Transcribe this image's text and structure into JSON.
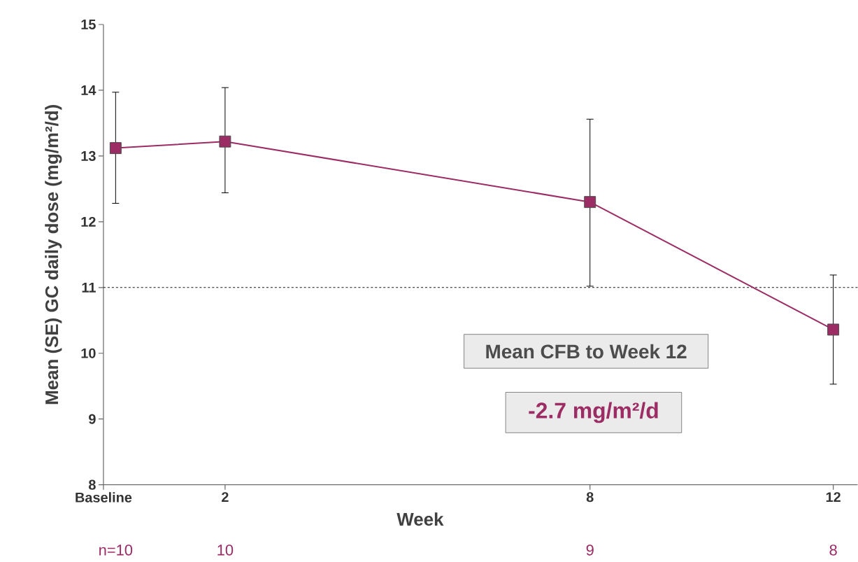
{
  "chart_data": {
    "type": "line",
    "ylabel": "Mean (SE)  GC daily dose (mg/m²/d)",
    "xlabel": "Week",
    "xlim": [
      0,
      12.4
    ],
    "xticks": [
      {
        "value": 0,
        "label": "Baseline"
      },
      2,
      8,
      12
    ],
    "ylim": [
      8,
      15
    ],
    "yticks": [
      8,
      9,
      10,
      11,
      12,
      13,
      14,
      15
    ],
    "series": [
      {
        "color": "#9c2c64",
        "x": [
          0.2,
          2,
          8,
          12
        ],
        "values": [
          13.12,
          13.22,
          12.3,
          10.36
        ],
        "errors": [
          [
            12.28,
            13.97
          ],
          [
            12.44,
            14.04
          ],
          [
            11.02,
            13.56
          ],
          [
            9.53,
            11.19
          ]
        ]
      }
    ],
    "marker": "square",
    "line_style": "solid",
    "ref_lines": [
      {
        "axis": "y",
        "value": 11,
        "line_style": "dashed",
        "color": "#000000"
      }
    ],
    "annotations": [
      "Mean CFB to Week 12",
      "-2.7 mg/m²/d",
      "n=10",
      "10",
      "9",
      "8"
    ]
  }
}
